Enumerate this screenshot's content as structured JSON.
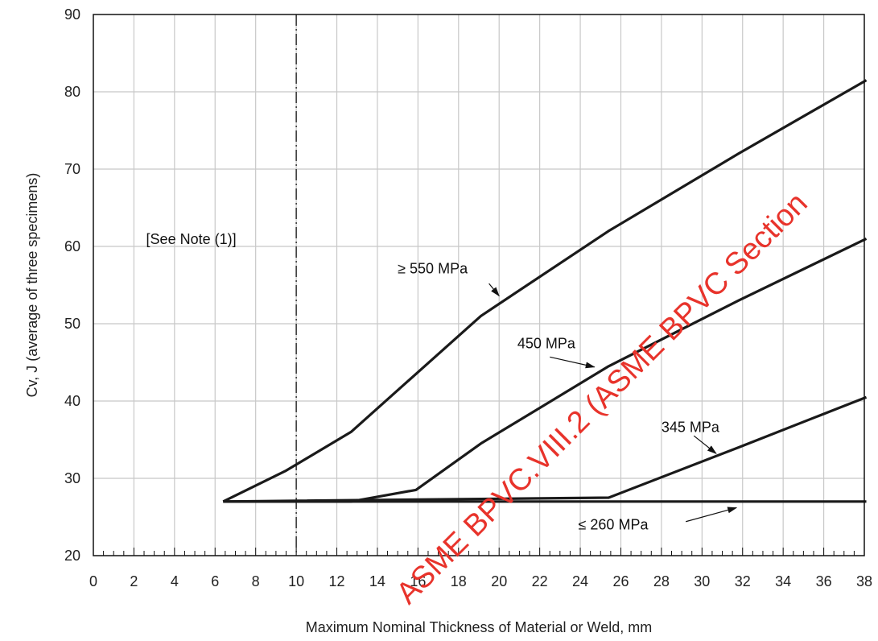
{
  "chart_data": {
    "type": "line",
    "xlabel": "Maximum Nominal Thickness of Material or Weld, mm",
    "ylabel": "Cv, J (average of three specimens)",
    "xlim": [
      0,
      38
    ],
    "ylim": [
      20,
      90
    ],
    "x_ticks": [
      0,
      2,
      4,
      6,
      8,
      10,
      12,
      14,
      16,
      18,
      20,
      22,
      24,
      26,
      28,
      30,
      32,
      34,
      36,
      38
    ],
    "y_ticks": [
      20,
      30,
      40,
      50,
      60,
      70,
      80,
      90
    ],
    "grid": true,
    "reference_line": {
      "x": 10,
      "style": "dash-dot"
    },
    "note_text": "[See Note (1)]",
    "series": [
      {
        "name": "≥ 550 MPa",
        "x": [
          6.4,
          9.5,
          12.7,
          15.9,
          19.1,
          25.4,
          31.8,
          38.1
        ],
        "y": [
          27,
          31,
          36,
          43.5,
          51,
          62,
          72,
          81.5
        ]
      },
      {
        "name": "450 MPa",
        "x": [
          6.4,
          12.7,
          15.9,
          19.1,
          25.4,
          31.8,
          38.1
        ],
        "y": [
          27,
          27,
          28.5,
          34.5,
          44.5,
          53,
          61
        ]
      },
      {
        "name": "345 MPa",
        "x": [
          6.4,
          25.4,
          31.8,
          38.1
        ],
        "y": [
          27,
          27.5,
          34,
          40.5
        ]
      },
      {
        "name": "≤ 260 MPa",
        "x": [
          6.4,
          38.1
        ],
        "y": [
          27,
          27
        ]
      }
    ],
    "annotations": [
      {
        "text": "≥ 550 MPa",
        "series": "≥ 550 MPa",
        "text_x": 15.0,
        "text_y": 56.5,
        "arrow_from": [
          19.5,
          55.2
        ],
        "arrow_to": [
          20.0,
          53.6
        ]
      },
      {
        "text": "450 MPa",
        "series": "450 MPa",
        "text_x": 20.9,
        "text_y": 46.8,
        "arrow_from": [
          22.5,
          45.7
        ],
        "arrow_to": [
          24.7,
          44.4
        ]
      },
      {
        "text": "345 MPa",
        "series": "345 MPa",
        "text_x": 28.0,
        "text_y": 36.0,
        "arrow_from": [
          29.6,
          35.5
        ],
        "arrow_to": [
          30.7,
          33.2
        ]
      },
      {
        "text": "≤ 260 MPa",
        "series": "≤ 260 MPa",
        "text_x": 23.9,
        "text_y": 23.4,
        "arrow_from": [
          29.2,
          24.4
        ],
        "arrow_to": [
          31.7,
          26.2
        ]
      }
    ]
  },
  "watermark": {
    "text": "ASME BPVC.VIII.2 (ASME BPVC Section",
    "color": "#e8332b"
  }
}
